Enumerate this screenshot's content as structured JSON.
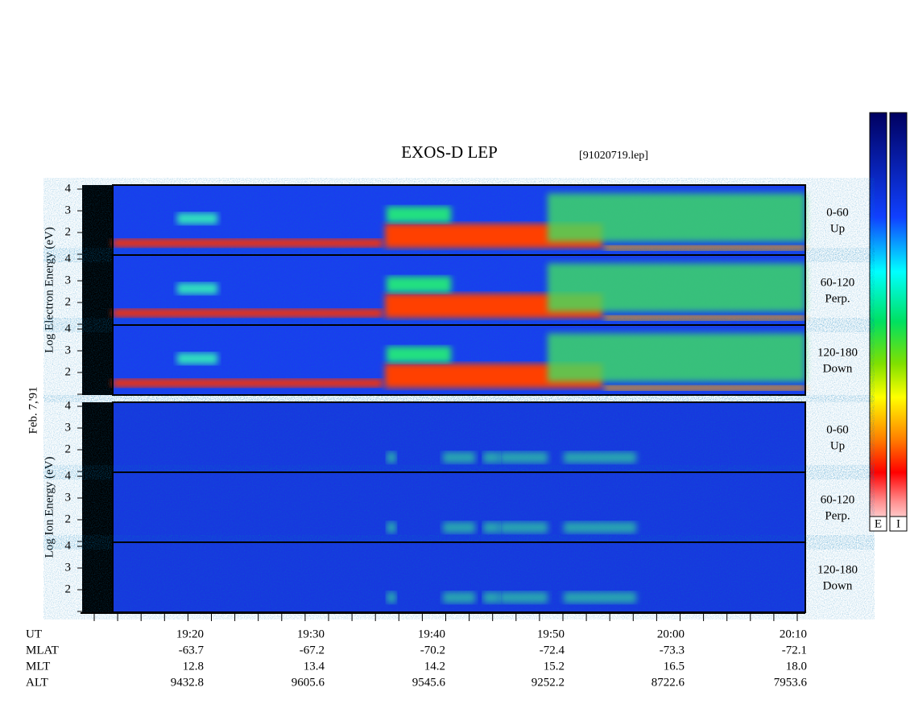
{
  "header": {
    "title": "EXOS-D LEP",
    "file": "[91020719.lep]",
    "date": "Feb. 7,'91"
  },
  "groups": [
    {
      "label": "Log Electron Energy (eV)",
      "panels": [
        {
          "angle": "0-60",
          "direction": "Up",
          "yticks": [
            4,
            3,
            2
          ]
        },
        {
          "angle": "60-120",
          "direction": "Perp.",
          "yticks": [
            4,
            3,
            2
          ]
        },
        {
          "angle": "120-180",
          "direction": "Down",
          "yticks": [
            4,
            3,
            2
          ]
        }
      ]
    },
    {
      "label": "Log Ion Energy (eV)",
      "panels": [
        {
          "angle": "0-60",
          "direction": "Up",
          "yticks": [
            4,
            3,
            2
          ]
        },
        {
          "angle": "60-120",
          "direction": "Perp.",
          "yticks": [
            4,
            3,
            2
          ]
        },
        {
          "angle": "120-180",
          "direction": "Down",
          "yticks": [
            4,
            3,
            2
          ]
        }
      ]
    }
  ],
  "colorbars": [
    "E",
    "I"
  ],
  "table": {
    "rows": [
      [
        "UT",
        "19:20",
        "19:30",
        "19:40",
        "19:50",
        "20:00",
        "20:10"
      ],
      [
        "MLAT",
        "-63.7",
        "-67.2",
        "-70.2",
        "-72.4",
        "-73.3",
        "-72.1"
      ],
      [
        "MLT",
        "12.8",
        "13.4",
        "14.2",
        "15.2",
        "16.5",
        "18.0"
      ],
      [
        "ALT",
        "9432.8",
        "9605.6",
        "9545.6",
        "9252.2",
        "8722.6",
        "7953.6"
      ]
    ]
  }
}
